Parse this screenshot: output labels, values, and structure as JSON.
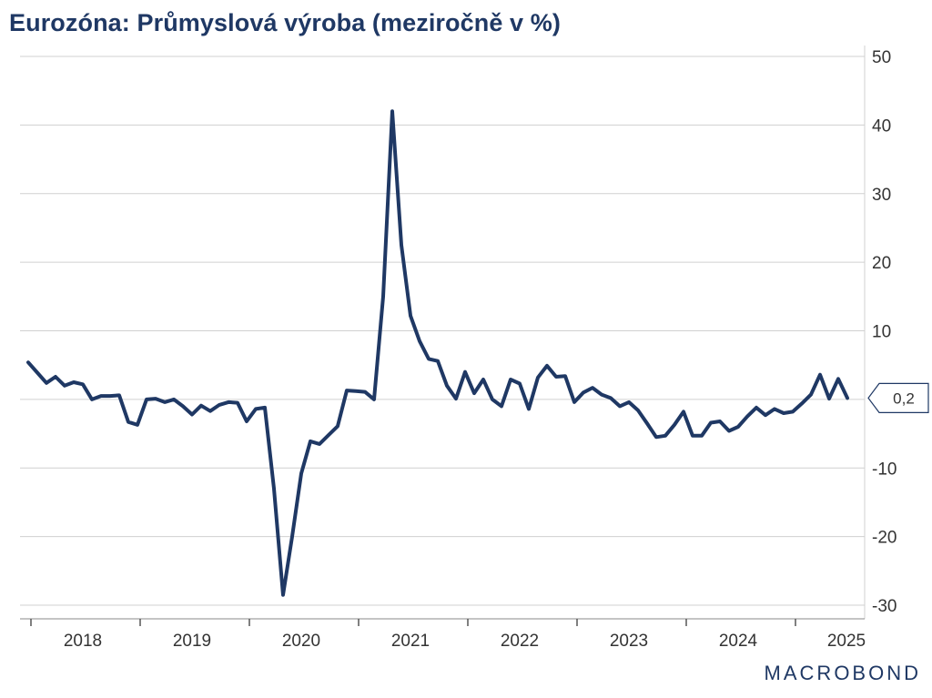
{
  "header": {
    "title": "Eurozóna: Průmyslová výroba (meziročně v %)"
  },
  "branding": {
    "logo_text": "MACROBOND"
  },
  "colors": {
    "line": "#1f3864",
    "grid": "#d0d0d0",
    "text": "#333333"
  },
  "chart_data": {
    "type": "line",
    "title": "Eurozóna: Průmyslová výroba (meziročně v %)",
    "xlabel": "",
    "ylabel": "",
    "y_axis_position": "right",
    "ylim": [
      -30,
      50
    ],
    "yticks": [
      -30,
      -20,
      -10,
      0,
      10,
      20,
      30,
      40,
      50
    ],
    "ytick_labels": [
      "-30",
      "-20",
      "-10",
      "",
      "10",
      "20",
      "30",
      "40",
      "50"
    ],
    "year_labels": [
      "2018",
      "2019",
      "2020",
      "2021",
      "2022",
      "2023",
      "2024",
      "2025"
    ],
    "x_start": "2018-01",
    "grid": true,
    "last_value_label": "0,2",
    "series": [
      {
        "values": [
          5.4,
          3.9,
          2.4,
          3.3,
          2.0,
          2.5,
          2.2,
          0.0,
          0.5,
          0.5,
          0.6,
          -3.3,
          -3.7,
          0.0,
          0.1,
          -0.4,
          0.0,
          -1.0,
          -2.2,
          -0.9,
          -1.7,
          -0.8,
          -0.4,
          -0.5,
          -3.2,
          -1.4,
          -1.2,
          -13.0,
          -28.5,
          -20.0,
          -10.8,
          -6.1,
          -6.5,
          -5.2,
          -3.9,
          1.3,
          1.2,
          1.1,
          0.0,
          15.0,
          42.0,
          22.5,
          12.2,
          8.5,
          5.9,
          5.6,
          2.0,
          0.1,
          4.0,
          0.9,
          2.9,
          0.0,
          -1.0,
          2.9,
          2.3,
          -1.4,
          3.2,
          4.9,
          3.3,
          3.4,
          -0.4,
          1.0,
          1.7,
          0.7,
          0.2,
          -1.0,
          -0.4,
          -1.6,
          -3.5,
          -5.5,
          -5.3,
          -3.7,
          -1.8,
          -5.3,
          -5.3,
          -3.4,
          -3.2,
          -4.6,
          -4.0,
          -2.5,
          -1.2,
          -2.3,
          -1.4,
          -2.0,
          -1.8,
          -0.6,
          0.7,
          3.6,
          0.1,
          3.0,
          0.2
        ]
      }
    ]
  }
}
